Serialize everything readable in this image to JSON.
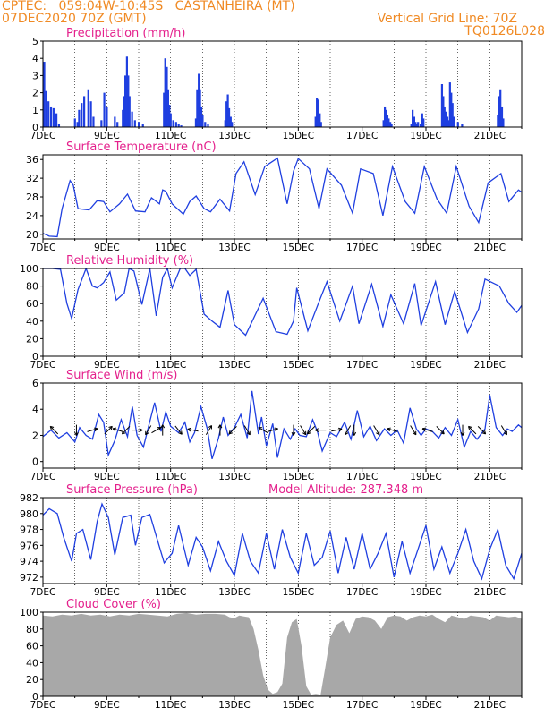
{
  "header": {
    "line1_left": "CPTEC:   059:04W-10:45S   CASTANHEIRA (MT)",
    "line2_left": "07DEC2020 70Z (GMT)",
    "line2_right": "Vertical Grid Line: 70Z",
    "line3_right": "TQ0126L028"
  },
  "colors": {
    "header": "#f08a24",
    "title": "#e4208c",
    "line": "#1f3fe0",
    "bar": "#1f3fe0",
    "cloud": "#a8a8a8"
  },
  "x_tick_labels": [
    "7DEC",
    "9DEC",
    "11DEC",
    "13DEC",
    "15DEC",
    "17DEC",
    "19DEC",
    "21DEC"
  ],
  "chart_data": [
    {
      "id": "precip",
      "type": "bar",
      "title": "Precipitation (mm/h)",
      "ylim": [
        0,
        5
      ],
      "yticks": [
        0,
        1,
        2,
        3,
        4,
        5
      ],
      "x_unit": "days since 7DEC 00Z",
      "x": [
        0.04,
        0.1,
        0.17,
        0.25,
        0.33,
        0.42,
        0.5,
        1.0,
        1.08,
        1.13,
        1.21,
        1.29,
        1.42,
        1.5,
        1.58,
        1.83,
        1.92,
        2.0,
        2.25,
        2.33,
        2.5,
        2.54,
        2.58,
        2.63,
        2.67,
        2.71,
        2.79,
        2.88,
        3.0,
        3.13,
        3.79,
        3.83,
        3.88,
        3.92,
        3.96,
        4.0,
        4.08,
        4.17,
        4.25,
        4.33,
        4.79,
        4.83,
        4.88,
        4.92,
        4.96,
        5.0,
        5.08,
        5.17,
        5.71,
        5.75,
        5.79,
        5.83,
        5.88,
        5.92,
        8.54,
        8.58,
        8.63,
        8.67,
        8.71,
        10.67,
        10.71,
        10.75,
        10.79,
        10.83,
        10.88,
        10.92,
        11.54,
        11.58,
        11.63,
        11.67,
        11.71,
        11.75,
        11.83,
        11.88,
        11.92,
        12.5,
        12.54,
        12.58,
        12.63,
        12.67,
        12.71,
        12.75,
        12.79,
        12.83,
        12.88,
        13.0,
        13.13,
        14.25,
        14.29,
        14.33,
        14.38,
        14.42
      ],
      "values": [
        3.8,
        2.1,
        1.5,
        1.2,
        1.1,
        0.8,
        0.2,
        0.5,
        0.3,
        1.0,
        1.4,
        1.8,
        2.2,
        1.5,
        0.6,
        0.4,
        2.0,
        1.2,
        0.6,
        0.3,
        1.0,
        1.8,
        3.0,
        4.1,
        3.0,
        1.8,
        0.9,
        0.4,
        0.3,
        0.2,
        2.0,
        4.0,
        3.5,
        2.2,
        1.3,
        0.8,
        0.4,
        0.3,
        0.2,
        0.1,
        0.5,
        2.2,
        3.1,
        2.2,
        1.2,
        0.7,
        0.3,
        0.2,
        0.4,
        1.5,
        1.9,
        1.1,
        0.6,
        0.3,
        0.6,
        1.7,
        1.6,
        0.8,
        0.3,
        0.4,
        1.2,
        1.0,
        0.7,
        0.5,
        0.3,
        0.2,
        0.2,
        1.0,
        0.6,
        0.3,
        0.2,
        0.3,
        0.2,
        0.8,
        0.5,
        2.5,
        1.8,
        1.2,
        0.9,
        0.6,
        0.4,
        2.6,
        2.0,
        1.4,
        0.6,
        0.3,
        0.2,
        0.7,
        1.8,
        2.2,
        1.2,
        0.5
      ]
    },
    {
      "id": "temp",
      "type": "line",
      "title": "Surface Temperature (nC)",
      "ylim": [
        19,
        37
      ],
      "yticks": [
        20,
        24,
        28,
        32,
        36
      ],
      "x": [
        0.0,
        0.2,
        0.45,
        0.6,
        0.85,
        0.95,
        1.1,
        1.45,
        1.7,
        1.9,
        2.1,
        2.4,
        2.65,
        2.9,
        3.2,
        3.4,
        3.65,
        3.75,
        3.85,
        4.05,
        4.4,
        4.6,
        4.8,
        5.05,
        5.25,
        5.55,
        5.85,
        6.05,
        6.3,
        6.65,
        6.95,
        7.35,
        7.65,
        7.85,
        8.0,
        8.35,
        8.65,
        8.9,
        9.35,
        9.7,
        9.95,
        10.35,
        10.65,
        10.95,
        11.35,
        11.65,
        11.95,
        12.35,
        12.65,
        12.95,
        13.35,
        13.65,
        13.95,
        14.35,
        14.6,
        14.9,
        15.0
      ],
      "values": [
        20.2,
        19.6,
        19.5,
        25.5,
        31.5,
        30.5,
        25.5,
        25.2,
        27.2,
        27.0,
        24.8,
        26.5,
        28.6,
        25.0,
        24.8,
        27.8,
        26.5,
        29.5,
        29.2,
        26.5,
        24.3,
        27.0,
        28.2,
        25.5,
        24.8,
        27.5,
        25.0,
        33.0,
        35.5,
        28.5,
        34.5,
        36.3,
        26.5,
        33.5,
        36.2,
        34.0,
        25.5,
        34.0,
        30.5,
        24.5,
        34.0,
        33.0,
        24.0,
        34.5,
        27.0,
        24.5,
        34.5,
        27.5,
        24.5,
        34.5,
        26.0,
        22.5,
        31.0,
        33.0,
        27.0,
        29.5,
        29.0
      ]
    },
    {
      "id": "rh",
      "type": "line",
      "title": "Relative Humidity (%)",
      "ylim": [
        0,
        100
      ],
      "yticks": [
        0,
        20,
        40,
        60,
        80,
        100
      ],
      "x": [
        0.0,
        0.3,
        0.55,
        0.75,
        0.9,
        1.1,
        1.35,
        1.55,
        1.7,
        1.9,
        2.1,
        2.3,
        2.55,
        2.7,
        2.85,
        3.1,
        3.35,
        3.55,
        3.75,
        3.9,
        4.05,
        4.3,
        4.45,
        4.6,
        4.8,
        5.05,
        5.3,
        5.55,
        5.8,
        6.0,
        6.35,
        6.65,
        6.9,
        7.3,
        7.65,
        7.85,
        7.95,
        8.3,
        8.65,
        8.9,
        9.3,
        9.7,
        9.9,
        10.3,
        10.65,
        10.9,
        11.3,
        11.65,
        11.85,
        12.3,
        12.6,
        12.9,
        13.3,
        13.65,
        13.85,
        14.3,
        14.6,
        14.85,
        15.0
      ],
      "values": [
        100,
        100,
        99,
        60,
        43,
        76,
        100,
        80,
        78,
        84,
        96,
        64,
        72,
        100,
        97,
        59,
        100,
        46,
        90,
        100,
        78,
        100,
        100,
        92,
        99,
        48,
        40,
        33,
        75,
        36,
        24,
        47,
        66,
        28,
        25,
        40,
        78,
        29,
        62,
        85,
        40,
        80,
        37,
        82,
        34,
        70,
        37,
        83,
        35,
        85,
        36,
        74,
        27,
        54,
        88,
        80,
        60,
        50,
        58
      ]
    },
    {
      "id": "wind",
      "type": "line",
      "title": "Surface Wind (m/s)",
      "ylim": [
        -0.5,
        6
      ],
      "yticks": [
        0,
        2,
        4,
        6
      ],
      "x": [
        0.0,
        0.25,
        0.5,
        0.75,
        1.0,
        1.15,
        1.35,
        1.55,
        1.75,
        1.9,
        2.05,
        2.25,
        2.45,
        2.65,
        2.8,
        2.95,
        3.15,
        3.3,
        3.5,
        3.7,
        3.85,
        4.0,
        4.25,
        4.45,
        4.6,
        4.75,
        4.95,
        5.15,
        5.3,
        5.5,
        5.65,
        5.8,
        6.0,
        6.2,
        6.4,
        6.55,
        6.75,
        6.85,
        7.0,
        7.2,
        7.35,
        7.55,
        7.75,
        7.9,
        8.05,
        8.25,
        8.45,
        8.6,
        8.75,
        9.0,
        9.2,
        9.45,
        9.65,
        9.85,
        10.05,
        10.25,
        10.45,
        10.7,
        10.9,
        11.1,
        11.3,
        11.5,
        11.7,
        11.85,
        12.0,
        12.2,
        12.4,
        12.6,
        12.8,
        13.0,
        13.2,
        13.4,
        13.6,
        13.85,
        14.0,
        14.2,
        14.4,
        14.55,
        14.7,
        14.9,
        15.0
      ],
      "values": [
        1.9,
        2.4,
        1.8,
        2.2,
        1.5,
        2.6,
        2.0,
        1.7,
        3.6,
        3.0,
        0.5,
        1.6,
        3.2,
        1.9,
        4.2,
        2.0,
        1.1,
        2.6,
        4.5,
        2.3,
        3.8,
        2.7,
        2.2,
        3.0,
        1.5,
        2.2,
        4.2,
        2.5,
        0.2,
        1.8,
        3.4,
        2.0,
        2.6,
        3.6,
        1.8,
        5.4,
        2.1,
        3.4,
        1.2,
        2.9,
        0.3,
        2.5,
        1.7,
        2.5,
        2.0,
        1.9,
        3.2,
        2.3,
        0.8,
        2.2,
        1.9,
        3.0,
        1.7,
        3.9,
        1.9,
        2.7,
        1.6,
        2.5,
        2.0,
        2.4,
        1.4,
        4.1,
        2.5,
        2.0,
        2.5,
        2.3,
        1.8,
        2.6,
        2.0,
        3.2,
        1.1,
        2.3,
        1.7,
        2.5,
        5.1,
        2.6,
        2.0,
        2.5,
        2.3,
        2.8,
        2.6
      ],
      "arrows": [
        {
          "x": 0.35,
          "u": -1,
          "v": 1
        },
        {
          "x": 1.05,
          "u": 0,
          "v": -1
        },
        {
          "x": 1.55,
          "u": 1,
          "v": 0.3
        },
        {
          "x": 2.05,
          "u": 1,
          "v": 1
        },
        {
          "x": 2.35,
          "u": -1,
          "v": 0.3
        },
        {
          "x": 2.6,
          "u": -1,
          "v": -1
        },
        {
          "x": 2.95,
          "u": 1,
          "v": 0
        },
        {
          "x": 3.3,
          "u": -0.6,
          "v": -1
        },
        {
          "x": 3.55,
          "u": 1,
          "v": 0.6
        },
        {
          "x": 3.75,
          "u": 0,
          "v": 1
        },
        {
          "x": 4.25,
          "u": 0.8,
          "v": -1
        },
        {
          "x": 4.7,
          "u": -1,
          "v": 0.2
        },
        {
          "x": 5.2,
          "u": 0.6,
          "v": 1
        },
        {
          "x": 5.55,
          "u": 0,
          "v": 1
        },
        {
          "x": 5.95,
          "u": -1,
          "v": -1
        },
        {
          "x": 6.4,
          "u": 0.6,
          "v": -1
        },
        {
          "x": 6.9,
          "u": -1,
          "v": 0.6
        },
        {
          "x": 7.2,
          "u": 1,
          "v": 0.3
        },
        {
          "x": 7.85,
          "u": 0,
          "v": -1
        },
        {
          "x": 8.15,
          "u": 0.6,
          "v": -1
        },
        {
          "x": 8.4,
          "u": -1,
          "v": -1
        },
        {
          "x": 8.7,
          "u": -1,
          "v": 0
        },
        {
          "x": 9.2,
          "u": 1,
          "v": 0.2
        },
        {
          "x": 9.55,
          "u": -0.6,
          "v": -1
        },
        {
          "x": 9.75,
          "u": 0,
          "v": -1
        },
        {
          "x": 10.45,
          "u": 0.6,
          "v": -1
        },
        {
          "x": 10.95,
          "u": -1,
          "v": 0.3
        },
        {
          "x": 11.6,
          "u": 0.6,
          "v": -1
        },
        {
          "x": 12.05,
          "u": -1,
          "v": 0.3
        },
        {
          "x": 12.45,
          "u": 1,
          "v": -1
        },
        {
          "x": 13.15,
          "u": 0,
          "v": -1
        },
        {
          "x": 13.45,
          "u": -1,
          "v": 1
        },
        {
          "x": 13.75,
          "u": 1,
          "v": -1
        },
        {
          "x": 14.45,
          "u": 0.6,
          "v": -1
        }
      ]
    },
    {
      "id": "press",
      "type": "line",
      "title": "Surface Pressure (hPa)",
      "annotation": "Model Altitude: 287.348  m",
      "ylim": [
        971.2,
        982
      ],
      "yticks": [
        972,
        974,
        976,
        978,
        980,
        982
      ],
      "x": [
        0.0,
        0.2,
        0.45,
        0.65,
        0.9,
        1.05,
        1.25,
        1.5,
        1.7,
        1.85,
        2.05,
        2.25,
        2.5,
        2.75,
        2.9,
        3.1,
        3.35,
        3.6,
        3.8,
        4.05,
        4.25,
        4.55,
        4.8,
        5.0,
        5.25,
        5.5,
        5.75,
        6.0,
        6.25,
        6.5,
        6.75,
        7.0,
        7.25,
        7.5,
        7.75,
        8.0,
        8.25,
        8.5,
        8.75,
        9.0,
        9.25,
        9.5,
        9.75,
        10.0,
        10.25,
        10.5,
        10.75,
        11.0,
        11.25,
        11.5,
        11.75,
        12.0,
        12.25,
        12.5,
        12.75,
        13.0,
        13.25,
        13.5,
        13.75,
        14.0,
        14.25,
        14.5,
        14.75,
        15.0
      ],
      "values": [
        979.8,
        980.6,
        980.0,
        977.0,
        974.0,
        977.5,
        978.0,
        974.2,
        979.0,
        981.2,
        979.5,
        974.8,
        979.5,
        979.8,
        976.0,
        979.5,
        979.9,
        976.5,
        973.8,
        975.0,
        978.5,
        973.5,
        977.0,
        975.8,
        972.8,
        976.5,
        974.0,
        972.2,
        977.5,
        974.0,
        972.5,
        977.5,
        973.0,
        978.0,
        974.5,
        972.5,
        977.5,
        973.5,
        974.5,
        977.8,
        972.5,
        977.0,
        973.0,
        977.5,
        973.0,
        975.0,
        977.5,
        972.0,
        976.5,
        972.5,
        975.5,
        978.5,
        973.0,
        975.8,
        972.5,
        975.0,
        978.0,
        974.0,
        971.8,
        975.5,
        978.0,
        973.5,
        971.8,
        975.0
      ]
    },
    {
      "id": "cloud",
      "type": "area",
      "title": "Cloud Cover (%)",
      "ylim": [
        0,
        100
      ],
      "yticks": [
        0,
        20,
        40,
        60,
        80,
        100
      ],
      "x": [
        0.0,
        0.3,
        0.6,
        0.9,
        1.2,
        1.5,
        1.8,
        2.1,
        2.4,
        2.7,
        3.0,
        3.3,
        3.6,
        3.9,
        4.2,
        4.5,
        4.8,
        5.1,
        5.4,
        5.7,
        5.85,
        6.0,
        6.15,
        6.3,
        6.45,
        6.6,
        6.75,
        6.9,
        7.05,
        7.2,
        7.35,
        7.5,
        7.65,
        7.8,
        7.95,
        8.1,
        8.25,
        8.4,
        8.55,
        8.7,
        8.85,
        9.0,
        9.2,
        9.4,
        9.6,
        9.8,
        10.0,
        10.2,
        10.4,
        10.6,
        10.8,
        11.0,
        11.2,
        11.4,
        11.6,
        11.8,
        12.0,
        12.2,
        12.4,
        12.6,
        12.8,
        13.0,
        13.2,
        13.4,
        13.6,
        13.8,
        14.0,
        14.2,
        14.4,
        14.6,
        14.8,
        15.0
      ],
      "values": [
        96,
        95,
        97,
        96,
        98,
        96,
        97,
        95,
        97,
        96,
        98,
        97,
        96,
        95,
        98,
        99,
        97,
        98,
        98,
        97,
        94,
        93,
        96,
        95,
        94,
        80,
        55,
        25,
        8,
        3,
        5,
        15,
        70,
        88,
        92,
        60,
        12,
        2,
        3,
        2,
        35,
        70,
        85,
        90,
        75,
        92,
        95,
        94,
        90,
        80,
        94,
        96,
        95,
        90,
        94,
        96,
        95,
        97,
        92,
        88,
        96,
        94,
        92,
        96,
        95,
        94,
        90,
        96,
        95,
        94,
        95,
        92
      ]
    }
  ]
}
